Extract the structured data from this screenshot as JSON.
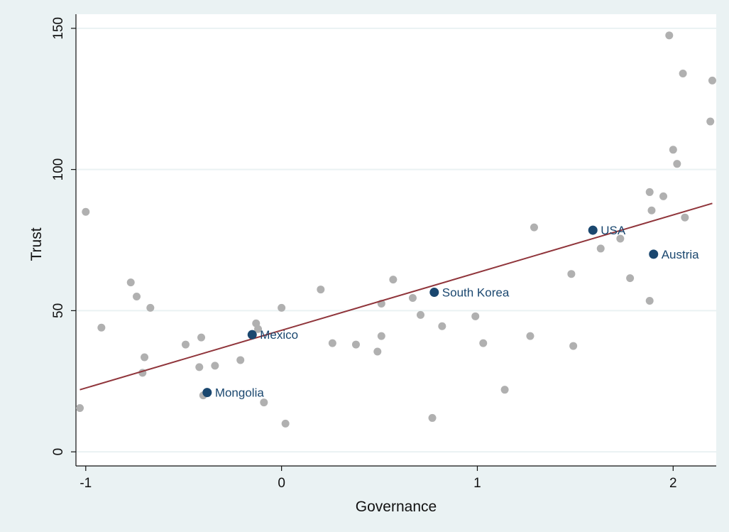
{
  "chart_data": {
    "type": "scatter",
    "title": "",
    "xlabel": "Governance",
    "ylabel": "Trust",
    "xlim": [
      -1.05,
      2.22
    ],
    "ylim": [
      -5,
      155
    ],
    "xticks": [
      -1,
      0,
      1,
      2
    ],
    "xtick_labels": [
      "-1",
      "0",
      "1",
      "2"
    ],
    "yticks": [
      0,
      50,
      100,
      150
    ],
    "ytick_labels": [
      "0",
      "50",
      "100",
      "150"
    ],
    "grid": "horizontal",
    "legend": "none",
    "colors": {
      "background": "#eaf2f3",
      "plot_area": "#ffffff",
      "gridline": "#eaf2f3",
      "point": "#b0b0b0",
      "highlight": "#1a476f",
      "fit_line": "#90353b"
    },
    "points": [
      {
        "x": -1.03,
        "y": 15.5
      },
      {
        "x": -1.0,
        "y": 85
      },
      {
        "x": -0.92,
        "y": 44
      },
      {
        "x": -0.77,
        "y": 60
      },
      {
        "x": -0.74,
        "y": 55
      },
      {
        "x": -0.71,
        "y": 28
      },
      {
        "x": -0.7,
        "y": 33.5
      },
      {
        "x": -0.67,
        "y": 51
      },
      {
        "x": -0.49,
        "y": 38
      },
      {
        "x": -0.42,
        "y": 30
      },
      {
        "x": -0.41,
        "y": 40.5
      },
      {
        "x": -0.4,
        "y": 20
      },
      {
        "x": -0.34,
        "y": 30.5
      },
      {
        "x": -0.21,
        "y": 32.5
      },
      {
        "x": -0.13,
        "y": 45.5
      },
      {
        "x": -0.12,
        "y": 43.5
      },
      {
        "x": -0.09,
        "y": 17.5
      },
      {
        "x": 0.0,
        "y": 51
      },
      {
        "x": 0.02,
        "y": 10
      },
      {
        "x": 0.2,
        "y": 57.5
      },
      {
        "x": 0.26,
        "y": 38.5
      },
      {
        "x": 0.38,
        "y": 38
      },
      {
        "x": 0.49,
        "y": 35.5
      },
      {
        "x": 0.51,
        "y": 52.5
      },
      {
        "x": 0.51,
        "y": 41
      },
      {
        "x": 0.57,
        "y": 61
      },
      {
        "x": 0.67,
        "y": 54.5
      },
      {
        "x": 0.71,
        "y": 48.5
      },
      {
        "x": 0.77,
        "y": 12
      },
      {
        "x": 0.82,
        "y": 44.5
      },
      {
        "x": 0.99,
        "y": 48
      },
      {
        "x": 1.03,
        "y": 38.5
      },
      {
        "x": 1.14,
        "y": 22
      },
      {
        "x": 1.27,
        "y": 41
      },
      {
        "x": 1.29,
        "y": 79.5
      },
      {
        "x": 1.48,
        "y": 63
      },
      {
        "x": 1.49,
        "y": 37.5
      },
      {
        "x": 1.63,
        "y": 72
      },
      {
        "x": 1.73,
        "y": 75.5
      },
      {
        "x": 1.78,
        "y": 61.5
      },
      {
        "x": 1.88,
        "y": 53.5
      },
      {
        "x": 1.88,
        "y": 92
      },
      {
        "x": 1.89,
        "y": 85.5
      },
      {
        "x": 1.95,
        "y": 90.5
      },
      {
        "x": 1.98,
        "y": 147.5
      },
      {
        "x": 2.0,
        "y": 107
      },
      {
        "x": 2.02,
        "y": 102
      },
      {
        "x": 2.05,
        "y": 134
      },
      {
        "x": 2.06,
        "y": 83
      },
      {
        "x": 2.19,
        "y": 117
      },
      {
        "x": 2.2,
        "y": 131.5
      }
    ],
    "highlighted": [
      {
        "label": "Mongolia",
        "x": -0.38,
        "y": 21
      },
      {
        "label": "Mexico",
        "x": -0.15,
        "y": 41.5
      },
      {
        "label": "South Korea",
        "x": 0.78,
        "y": 56.5
      },
      {
        "label": "USA",
        "x": 1.59,
        "y": 78.5
      },
      {
        "label": "Austria",
        "x": 1.9,
        "y": 70
      }
    ],
    "fit_line": {
      "x": [
        -1.03,
        2.2
      ],
      "y": [
        22,
        88
      ]
    }
  }
}
